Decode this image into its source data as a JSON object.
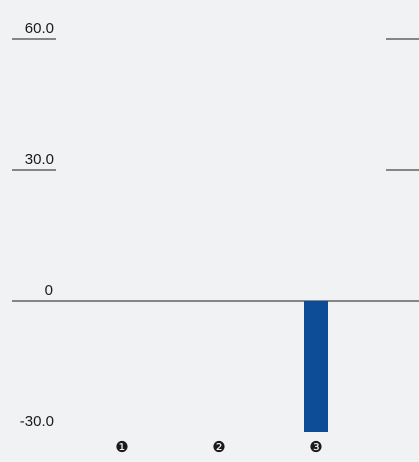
{
  "chart_data": {
    "type": "bar",
    "categories": [
      "❶",
      "❷",
      "❸"
    ],
    "values": [
      0,
      0,
      -30.0
    ],
    "ylim": [
      -30.0,
      60.0
    ],
    "y_ticks": [
      "60.0",
      "30.0",
      "0",
      "-30.0"
    ],
    "y_tick_values": [
      60.0,
      30.0,
      0,
      -30.0
    ],
    "grid": false,
    "colors": {
      "bar": "#0d4c96",
      "axis": "#1a1a1a",
      "text": "#1a1a1a",
      "background": "#f1f2f4"
    }
  }
}
